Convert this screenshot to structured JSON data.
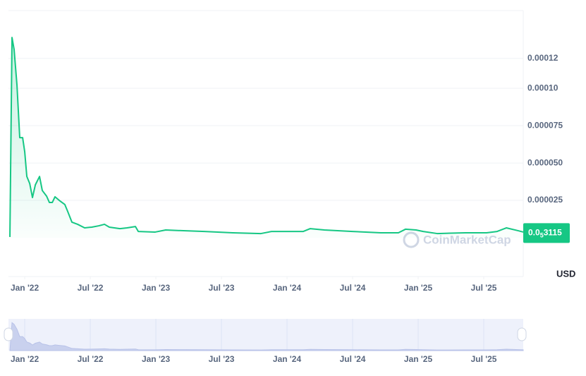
{
  "chart_data": {
    "type": "area",
    "color": "#16c784",
    "x": [
      2021.887,
      2021.903,
      2021.919,
      2021.941,
      2021.962,
      2021.984,
      2022.0,
      2022.016,
      2022.038,
      2022.059,
      2022.081,
      2022.113,
      2022.134,
      2022.167,
      2022.188,
      2022.21,
      2022.231,
      2022.263,
      2022.306,
      2022.328,
      2022.36,
      2022.403,
      2022.457,
      2022.511,
      2022.565,
      2022.608,
      2022.645,
      2022.726,
      2022.78,
      2022.844,
      2022.866,
      2022.995,
      2023.075,
      2023.21,
      2023.371,
      2023.586,
      2023.801,
      2023.882,
      2024.124,
      2024.177,
      2024.285,
      2024.5,
      2024.715,
      2024.849,
      2024.903,
      2024.984,
      2025.038,
      2025.145,
      2025.36,
      2025.522,
      2025.602,
      2025.672,
      2025.763,
      2025.801
    ],
    "values": [
      5e-07,
      0.000134,
      0.000126,
      0.000102,
      6.7e-05,
      6.7e-05,
      5.75e-05,
      4.1e-05,
      3.63e-05,
      2.69e-05,
      3.54e-05,
      4.1e-05,
      3.16e-05,
      2.78e-05,
      2.36e-05,
      2.36e-05,
      2.74e-05,
      2.5e-05,
      2.22e-05,
      1.75e-05,
      1.04e-05,
      9e-06,
      6.6e-06,
      7.1e-06,
      8e-06,
      9e-06,
      7.1e-06,
      6.1e-06,
      6.6e-06,
      7.5e-06,
      4.2e-06,
      3.8e-06,
      5.2e-06,
      4.7e-06,
      4.2e-06,
      3.3e-06,
      2.8e-06,
      4.2e-06,
      4.2e-06,
      6.1e-06,
      5.2e-06,
      4.2e-06,
      3.3e-06,
      3.3e-06,
      5.7e-06,
      5.2e-06,
      4.2e-06,
      2.8e-06,
      3.3e-06,
      3.3e-06,
      4.2e-06,
      6.6e-06,
      4.7e-06,
      3.8e-06
    ],
    "xlim": [
      2021.876,
      2025.801
    ],
    "xticks": [
      {
        "value": 2022,
        "label": "Jan '22"
      },
      {
        "value": 2022.5,
        "label": "Jul '22"
      },
      {
        "value": 2023,
        "label": "Jan '23"
      },
      {
        "value": 2023.5,
        "label": "Jul '23"
      },
      {
        "value": 2024,
        "label": "Jan '24"
      },
      {
        "value": 2024.5,
        "label": "Jul '24"
      },
      {
        "value": 2025,
        "label": "Jan '25"
      },
      {
        "value": 2025.5,
        "label": "Jul '25"
      }
    ],
    "ylim": [
      0,
      0.000152
    ],
    "yticks": [
      2.5e-05,
      {
        "value": 5e-05,
        "label": "0.000050"
      },
      7.5e-05,
      {
        "value": 0.0001,
        "label": "0.00010"
      },
      0.00012
    ],
    "grid": true,
    "current_price": {
      "value": 3.115e-06,
      "label": [
        "0.0",
        "5",
        "3115"
      ]
    },
    "currency": "USD",
    "watermark": "CoinMarketCap"
  }
}
